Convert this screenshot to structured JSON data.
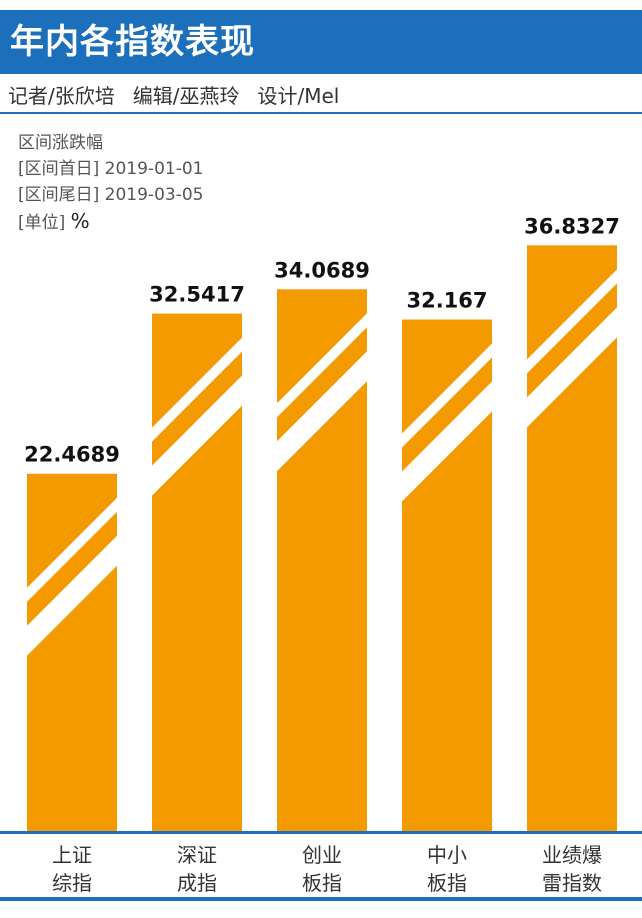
{
  "header": {
    "title": "年内各指数表现"
  },
  "byline": {
    "reporter": "记者/张欣培",
    "editor": "编辑/巫燕玲",
    "design": "设计/Mel"
  },
  "meta": {
    "subtitle": "区间涨跌幅",
    "start_label": "[区间首日]",
    "start_date": "2019-01-01",
    "end_label": "[区间尾日]",
    "end_date": "2019-03-05",
    "unit_label": "[单位]",
    "unit": "%"
  },
  "colors": {
    "bar": "#f29a00",
    "header": "#1c6fba",
    "axis": "#1c6fba"
  },
  "chart_data": {
    "type": "bar",
    "categories": [
      [
        "上证",
        "综指"
      ],
      [
        "深证",
        "成指"
      ],
      [
        "创业",
        "板指"
      ],
      [
        "中小",
        "板指"
      ],
      [
        "业绩爆",
        "雷指数"
      ]
    ],
    "values": [
      22.4689,
      32.5417,
      34.0689,
      32.167,
      36.8327
    ],
    "value_labels": [
      "22.4689",
      "32.5417",
      "34.0689",
      "32.167",
      "36.8327"
    ],
    "ylim": [
      0,
      40
    ]
  }
}
